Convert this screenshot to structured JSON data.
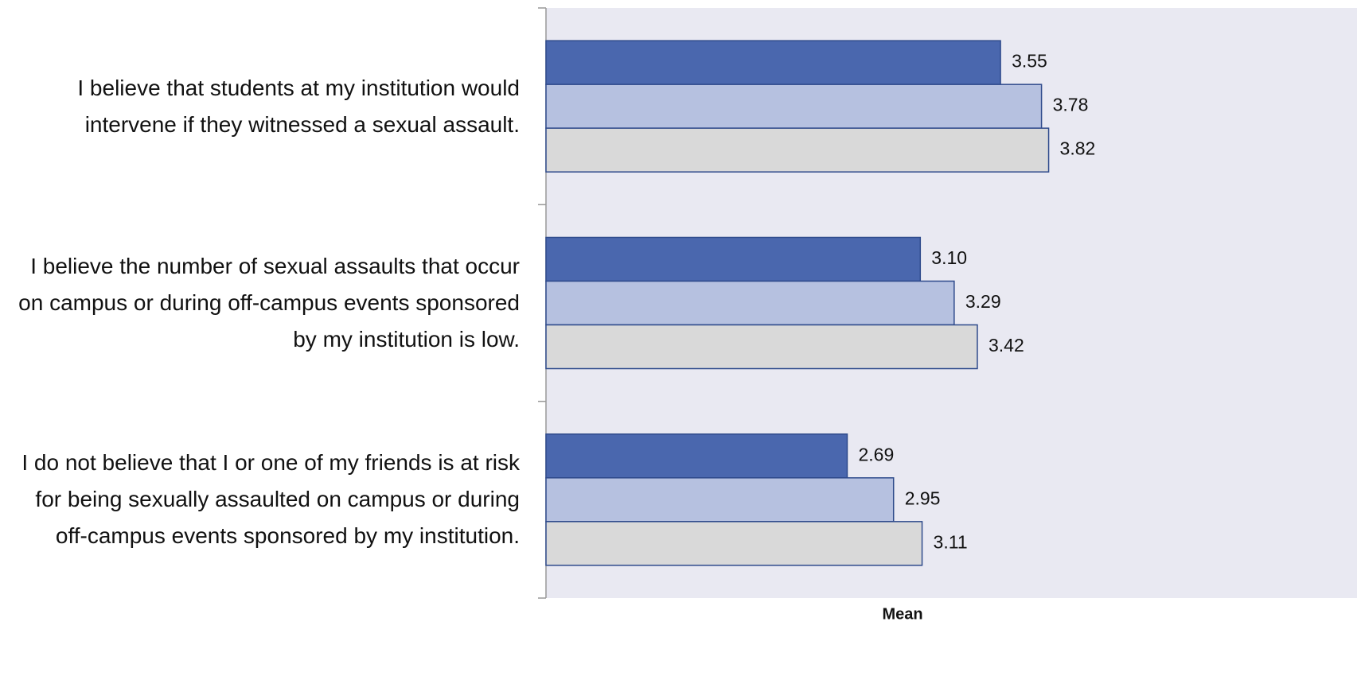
{
  "chart_data": {
    "type": "barh",
    "categories": [
      "I believe that students at my institution would intervene if they witnessed a sexual assault.",
      "I believe the number of sexual assaults that occur on campus or during off-campus events sponsored by my institution is low.",
      "I do not believe that I or one of my friends is at risk for being sexually assaulted on campus or during off-campus events sponsored by my institution."
    ],
    "series": [
      {
        "color": "#4a67ae",
        "values": [
          3.55,
          3.1,
          2.69
        ],
        "value_labels": [
          "3.55",
          "3.10",
          "2.69"
        ]
      },
      {
        "color": "#b6c1e0",
        "values": [
          3.78,
          3.29,
          2.95
        ],
        "value_labels": [
          "3.78",
          "3.29",
          "2.95"
        ]
      },
      {
        "color": "#d9d9d9",
        "values": [
          3.82,
          3.42,
          3.11
        ],
        "value_labels": [
          "3.82",
          "3.42",
          "3.11"
        ]
      }
    ],
    "xlabel": "Mean",
    "xlim": [
      1,
      5.55
    ]
  }
}
